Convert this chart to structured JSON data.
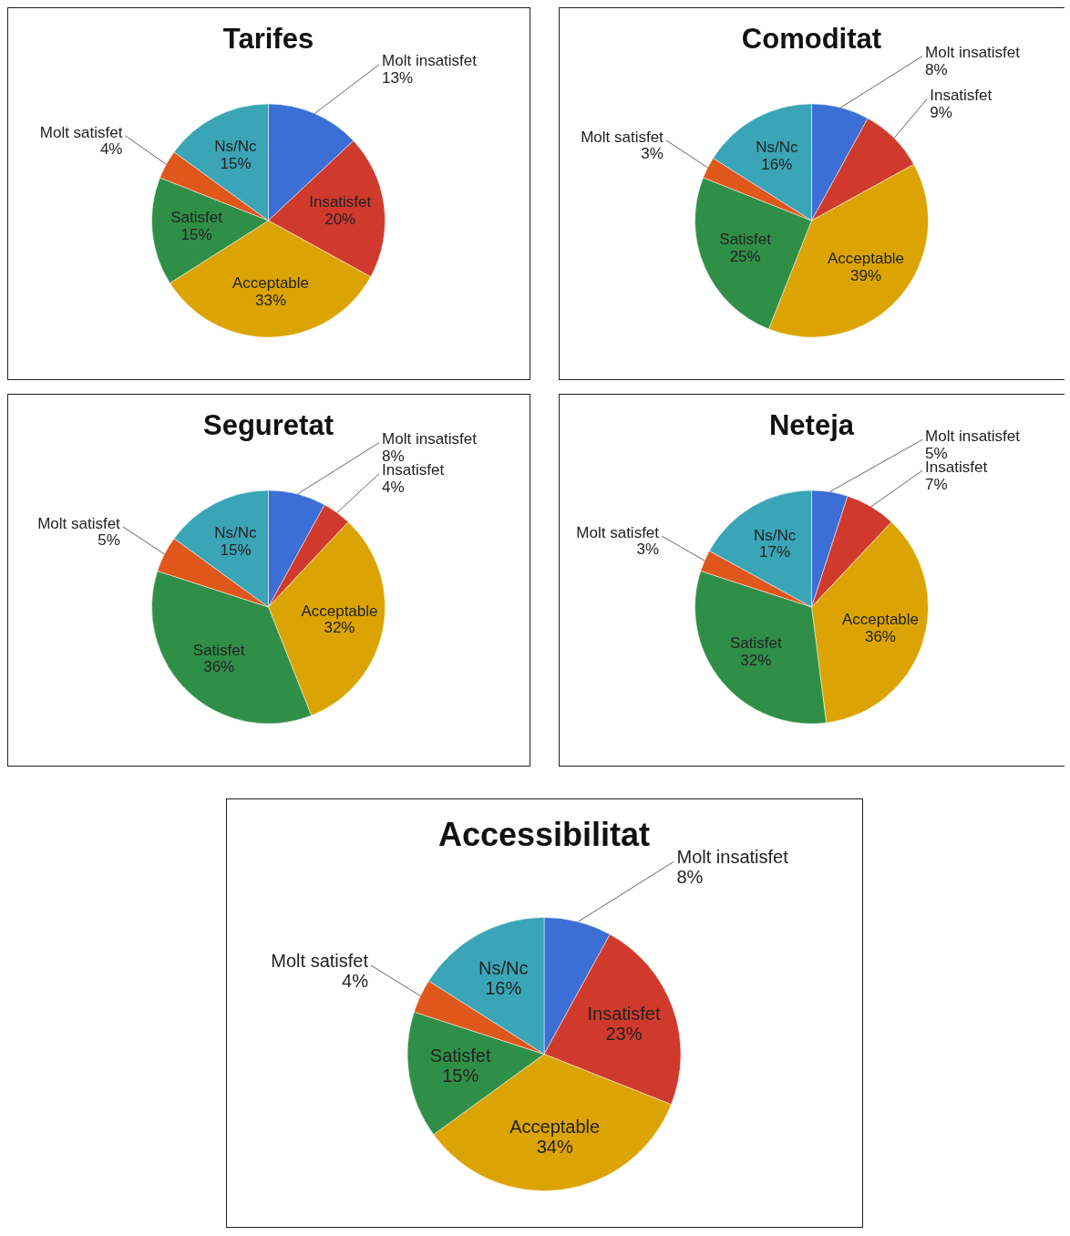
{
  "chart_data": [
    {
      "type": "pie",
      "title": "Tarifes",
      "categories": [
        "Molt insatisfet",
        "Insatisfet",
        "Acceptable",
        "Satisfet",
        "Molt satisfet",
        "Ns/Nc"
      ],
      "values": [
        13,
        20,
        33,
        15,
        4,
        15
      ],
      "value_labels": [
        "13%",
        "20%",
        "33%",
        "15%",
        "4%",
        "15%"
      ],
      "colors": [
        "#3b6fd6",
        "#d03a2c",
        "#dca402",
        "#2f8f47",
        "#e0571c",
        "#3aa5b7"
      ]
    },
    {
      "type": "pie",
      "title": "Comoditat",
      "categories": [
        "Molt insatisfet",
        "Insatisfet",
        "Acceptable",
        "Satisfet",
        "Molt satisfet",
        "Ns/Nc"
      ],
      "values": [
        8,
        9,
        39,
        25,
        3,
        16
      ],
      "value_labels": [
        "8%",
        "9%",
        "39%",
        "25%",
        "3%",
        "16%"
      ],
      "colors": [
        "#3b6fd6",
        "#d03a2c",
        "#dca402",
        "#2f8f47",
        "#e0571c",
        "#3aa5b7"
      ]
    },
    {
      "type": "pie",
      "title": "Seguretat",
      "categories": [
        "Molt insatisfet",
        "Insatisfet",
        "Acceptable",
        "Satisfet",
        "Molt satisfet",
        "Ns/Nc"
      ],
      "values": [
        8,
        4,
        32,
        36,
        5,
        15
      ],
      "value_labels": [
        "8%",
        "4%",
        "32%",
        "36%",
        "5%",
        "15%"
      ],
      "colors": [
        "#3b6fd6",
        "#d03a2c",
        "#dca402",
        "#2f8f47",
        "#e0571c",
        "#3aa5b7"
      ]
    },
    {
      "type": "pie",
      "title": "Neteja",
      "categories": [
        "Molt insatisfet",
        "Insatisfet",
        "Acceptable",
        "Satisfet",
        "Molt satisfet",
        "Ns/Nc"
      ],
      "values": [
        5,
        7,
        36,
        32,
        3,
        17
      ],
      "value_labels": [
        "5%",
        "7%",
        "36%",
        "32%",
        "3%",
        "17%"
      ],
      "colors": [
        "#3b6fd6",
        "#d03a2c",
        "#dca402",
        "#2f8f47",
        "#e0571c",
        "#3aa5b7"
      ]
    },
    {
      "type": "pie",
      "title": "Accessibilitat",
      "categories": [
        "Molt insatisfet",
        "Insatisfet",
        "Acceptable",
        "Satisfet",
        "Molt satisfet",
        "Ns/Nc"
      ],
      "values": [
        8,
        23,
        34,
        15,
        4,
        16
      ],
      "value_labels": [
        "8%",
        "23%",
        "34%",
        "15%",
        "4%",
        "16%"
      ],
      "colors": [
        "#3b6fd6",
        "#d03a2c",
        "#dca402",
        "#2f8f47",
        "#e0571c",
        "#3aa5b7"
      ]
    }
  ]
}
